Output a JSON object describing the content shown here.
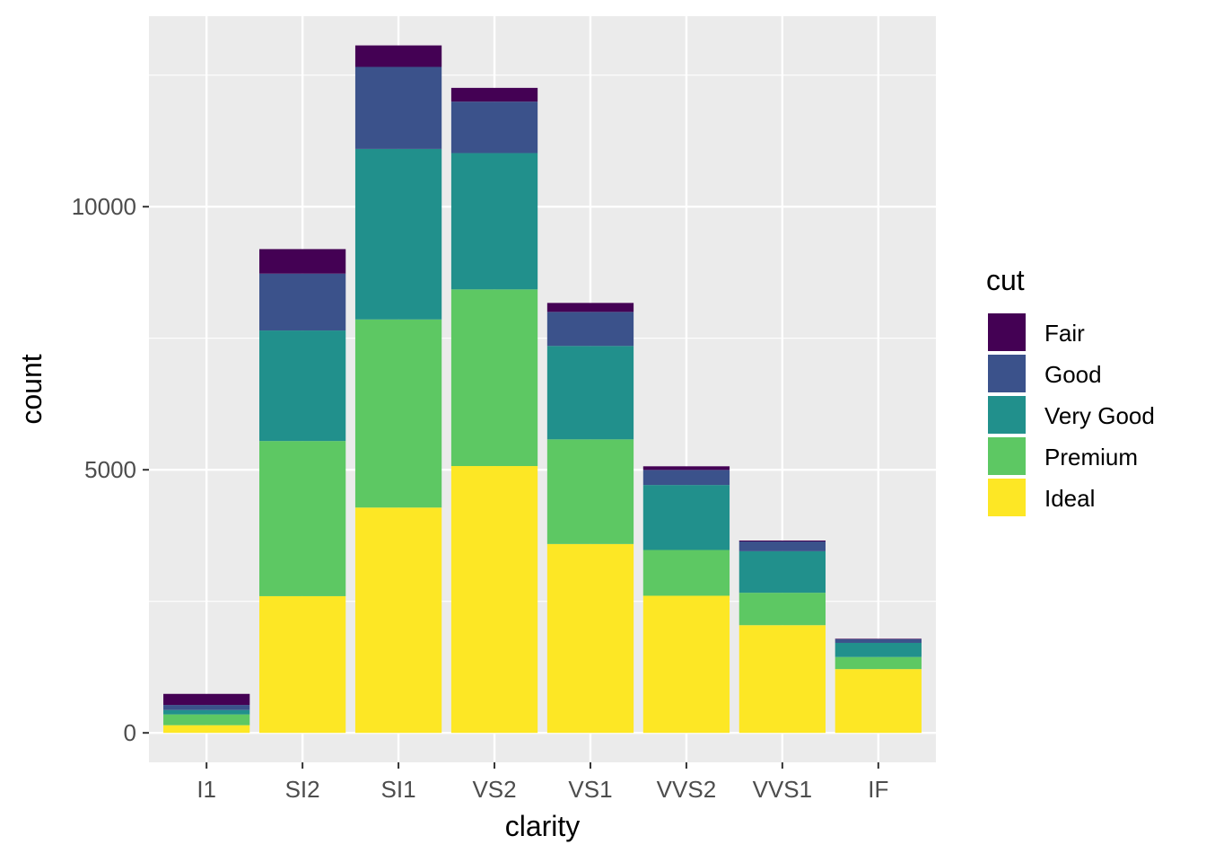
{
  "chart_data": {
    "type": "bar",
    "stacked": true,
    "categories": [
      "I1",
      "SI2",
      "SI1",
      "VS2",
      "VS1",
      "VVS2",
      "VVS1",
      "IF"
    ],
    "series": [
      {
        "name": "Fair",
        "color": "#440154",
        "values": [
          210,
          466,
          408,
          261,
          170,
          69,
          17,
          9
        ]
      },
      {
        "name": "Good",
        "color": "#3B528B",
        "values": [
          96,
          1081,
          1560,
          978,
          648,
          286,
          186,
          71
        ]
      },
      {
        "name": "Very Good",
        "color": "#21908C",
        "values": [
          84,
          2100,
          3240,
          2591,
          1775,
          1235,
          789,
          268
        ]
      },
      {
        "name": "Premium",
        "color": "#5DC863",
        "values": [
          205,
          2949,
          3575,
          3357,
          1989,
          870,
          616,
          230
        ]
      },
      {
        "name": "Ideal",
        "color": "#FDE725",
        "values": [
          146,
          2598,
          4282,
          5071,
          3589,
          2606,
          2047,
          1212
        ]
      }
    ],
    "xlabel": "clarity",
    "ylabel": "count",
    "ylim": [
      -560,
      13621
    ],
    "yticks": [
      0,
      5000,
      10000
    ],
    "ytick_labels": [
      "0",
      "5000",
      "10000"
    ],
    "minor_yticks": [
      2500,
      7500,
      12500
    ],
    "legend": {
      "title": "cut",
      "placement": "right"
    },
    "grid": true,
    "panel_background": "#EBEBEB",
    "grid_color": "#FFFFFF"
  }
}
